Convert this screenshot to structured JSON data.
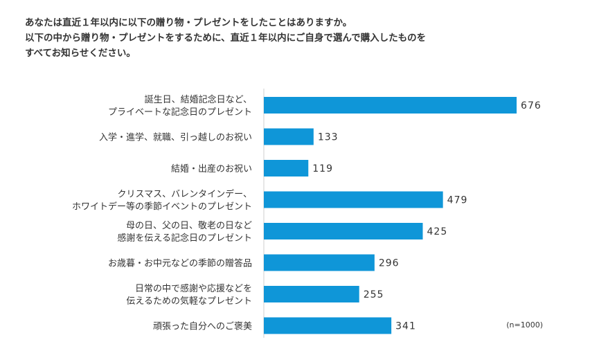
{
  "question": {
    "line1": "あなたは直近１年以内に以下の贈り物・プレゼントをしたことはありますか。",
    "line2": "以下の中から贈り物・プレゼントをするために、直近１年以内にご自身で選んで購入したものを",
    "line3": "すべてお知らせください。"
  },
  "chart_data": {
    "type": "bar",
    "orientation": "horizontal",
    "bar_color": "#0f96d8",
    "categories": [
      [
        "誕生日、結婚記念日など、",
        "プライベートな記念日のプレゼント"
      ],
      [
        "入学・進学、就職、引っ越しのお祝い"
      ],
      [
        "結婚・出産のお祝い"
      ],
      [
        "クリスマス、バレンタインデー、",
        "ホワイトデー等の季節イベントのプレゼント"
      ],
      [
        "母の日、父の日、敬老の日など",
        "感謝を伝える記念日のプレゼント"
      ],
      [
        "お歳暮・お中元などの季節の贈答品"
      ],
      [
        "日常の中で感謝や応援などを",
        "伝えるための気軽なプレゼント"
      ],
      [
        "頑張った自分へのご褒美"
      ]
    ],
    "values": [
      676,
      133,
      119,
      479,
      425,
      296,
      255,
      341
    ],
    "xlim": [
      0,
      1000
    ],
    "sample_note": "(n=1000)"
  }
}
